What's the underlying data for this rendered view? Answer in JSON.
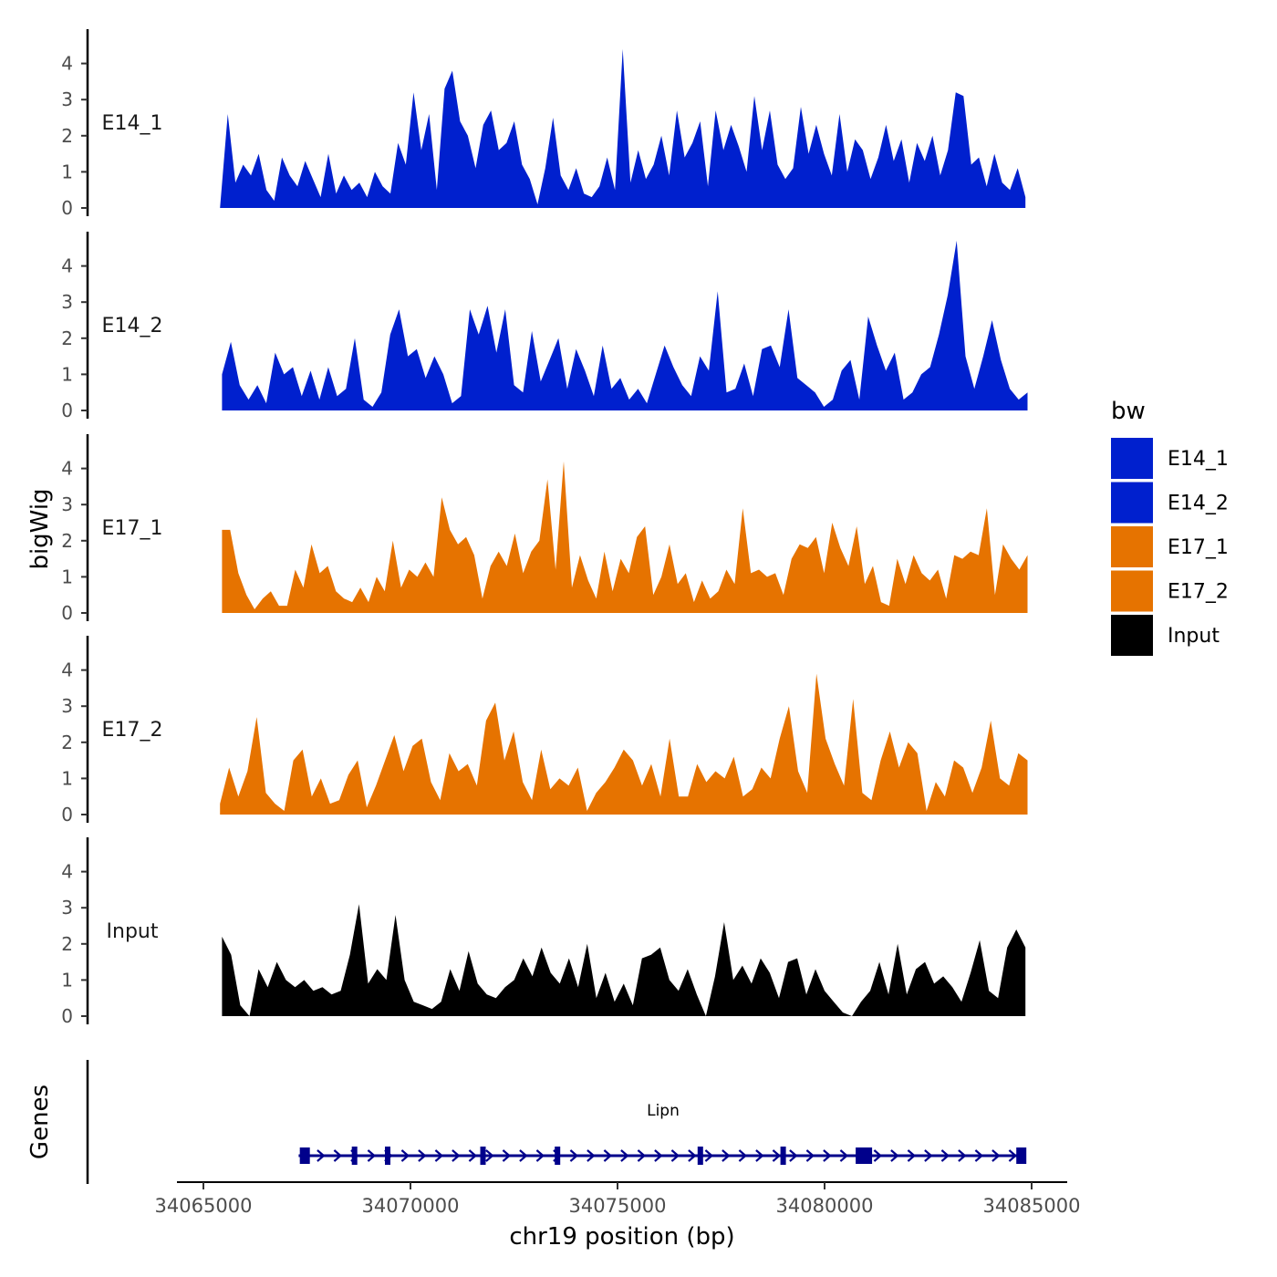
{
  "chart_data": {
    "type": "area",
    "ylabel": "bigWig",
    "xlabel": "chr19 position (bp)",
    "genes_label": "Genes",
    "gene_name": "Lipn",
    "legend_title": "bw",
    "legend_position": "right",
    "ylim": [
      0,
      5
    ],
    "yticks": [
      "0",
      "1",
      "2",
      "3",
      "4"
    ],
    "xlim": [
      34064500,
      34086000
    ],
    "xticks": [
      34065000,
      34070000,
      34075000,
      34080000,
      34085000
    ],
    "xtick_labels": [
      "34065000",
      "34070000",
      "34075000",
      "34080000",
      "34085000"
    ],
    "colors": {
      "E14_1": "#0020CE",
      "E14_2": "#0020CE",
      "E17_1": "#E67300",
      "E17_2": "#E67300",
      "Input": "#000000",
      "gene": "#00008B"
    },
    "legend": [
      {
        "label": "E14_1",
        "color": "#0020CE"
      },
      {
        "label": "E14_2",
        "color": "#0020CE"
      },
      {
        "label": "E17_1",
        "color": "#E67300"
      },
      {
        "label": "E17_2",
        "color": "#E67300"
      },
      {
        "label": "Input",
        "color": "#000000"
      }
    ],
    "tracks": [
      {
        "name": "E14_1",
        "x_start": 34065400,
        "x_end": 34084850,
        "values": [
          0,
          2.6,
          0.7,
          1.2,
          0.9,
          1.5,
          0.5,
          0.2,
          1.4,
          0.9,
          0.6,
          1.3,
          0.8,
          0.3,
          1.5,
          0.4,
          0.9,
          0.5,
          0.7,
          0.3,
          1.0,
          0.6,
          0.4,
          1.8,
          1.2,
          3.2,
          1.6,
          2.6,
          0.5,
          3.3,
          3.8,
          2.4,
          2.0,
          1.1,
          2.3,
          2.7,
          1.6,
          1.8,
          2.4,
          1.2,
          0.8,
          0.1,
          1.1,
          2.5,
          0.9,
          0.5,
          1.1,
          0.4,
          0.3,
          0.6,
          1.4,
          0.5,
          4.4,
          0.7,
          1.6,
          0.8,
          1.2,
          2.0,
          0.9,
          2.7,
          1.4,
          1.8,
          2.4,
          0.6,
          2.7,
          1.6,
          2.3,
          1.7,
          1.0,
          3.1,
          1.6,
          2.7,
          1.2,
          0.8,
          1.1,
          2.8,
          1.5,
          2.3,
          1.5,
          0.9,
          2.6,
          1.0,
          1.9,
          1.6,
          0.8,
          1.4,
          2.3,
          1.3,
          1.9,
          0.7,
          1.8,
          1.3,
          2.0,
          0.9,
          1.6,
          3.2,
          3.1,
          1.2,
          1.4,
          0.6,
          1.5,
          0.7,
          0.5,
          1.1,
          0.3
        ]
      },
      {
        "name": "E14_2",
        "x_start": 34065450,
        "x_end": 34084900,
        "values": [
          1.0,
          1.9,
          0.7,
          0.3,
          0.7,
          0.2,
          1.6,
          1.0,
          1.2,
          0.4,
          1.1,
          0.3,
          1.2,
          0.4,
          0.6,
          2.0,
          0.3,
          0.1,
          0.5,
          2.1,
          2.8,
          1.5,
          1.7,
          0.9,
          1.5,
          1.0,
          0.2,
          0.4,
          2.8,
          2.1,
          2.9,
          1.6,
          2.8,
          0.7,
          0.5,
          2.2,
          0.8,
          1.4,
          2.0,
          0.6,
          1.7,
          1.1,
          0.4,
          1.8,
          0.6,
          0.9,
          0.3,
          0.6,
          0.2,
          1.0,
          1.8,
          1.2,
          0.7,
          0.4,
          1.5,
          1.1,
          3.3,
          0.5,
          0.6,
          1.3,
          0.4,
          1.7,
          1.8,
          1.2,
          2.8,
          0.9,
          0.7,
          0.5,
          0.1,
          0.3,
          1.1,
          1.4,
          0.3,
          2.6,
          1.8,
          1.1,
          1.6,
          0.3,
          0.5,
          1.0,
          1.2,
          2.1,
          3.2,
          4.7,
          1.5,
          0.6,
          1.5,
          2.5,
          1.4,
          0.6,
          0.3,
          0.5
        ]
      },
      {
        "name": "E17_1",
        "x_start": 34065450,
        "x_end": 34084900,
        "values": [
          2.3,
          2.3,
          1.1,
          0.5,
          0.1,
          0.4,
          0.6,
          0.2,
          0.2,
          1.2,
          0.7,
          1.9,
          1.1,
          1.3,
          0.6,
          0.4,
          0.3,
          0.7,
          0.3,
          1.0,
          0.6,
          2.0,
          0.7,
          1.2,
          1.0,
          1.4,
          1.0,
          3.2,
          2.3,
          1.9,
          2.1,
          1.6,
          0.4,
          1.3,
          1.7,
          1.3,
          2.2,
          1.1,
          1.7,
          2.0,
          3.7,
          1.2,
          4.2,
          0.7,
          1.6,
          0.9,
          0.4,
          1.7,
          0.6,
          1.5,
          1.1,
          2.1,
          2.4,
          0.5,
          1.0,
          1.9,
          0.8,
          1.1,
          0.3,
          0.9,
          0.4,
          0.6,
          1.2,
          0.8,
          2.9,
          1.1,
          1.2,
          1.0,
          1.1,
          0.5,
          1.5,
          1.9,
          1.8,
          2.1,
          1.1,
          2.5,
          1.8,
          1.3,
          2.4,
          0.8,
          1.3,
          0.3,
          0.2,
          1.5,
          0.8,
          1.6,
          1.1,
          0.9,
          1.2,
          0.4,
          1.6,
          1.5,
          1.7,
          1.6,
          2.9,
          0.5,
          1.9,
          1.5,
          1.2,
          1.6
        ]
      },
      {
        "name": "E17_2",
        "x_start": 34065400,
        "x_end": 34084900,
        "values": [
          0.3,
          1.3,
          0.5,
          1.2,
          2.7,
          0.6,
          0.3,
          0.1,
          1.5,
          1.8,
          0.5,
          1.0,
          0.3,
          0.4,
          1.1,
          1.5,
          0.2,
          0.8,
          1.5,
          2.2,
          1.2,
          1.9,
          2.1,
          0.9,
          0.4,
          1.7,
          1.2,
          1.4,
          0.8,
          2.6,
          3.1,
          1.5,
          2.3,
          0.9,
          0.4,
          1.8,
          0.7,
          1.0,
          0.8,
          1.3,
          0.1,
          0.6,
          0.9,
          1.3,
          1.8,
          1.5,
          0.8,
          1.4,
          0.5,
          2.1,
          0.5,
          0.5,
          1.4,
          0.9,
          1.2,
          1.0,
          1.6,
          0.5,
          0.7,
          1.3,
          1.0,
          2.1,
          3.0,
          1.2,
          0.6,
          3.9,
          2.1,
          1.4,
          0.8,
          3.2,
          0.6,
          0.4,
          1.5,
          2.3,
          1.3,
          2.0,
          1.7,
          0.1,
          0.9,
          0.5,
          1.5,
          1.3,
          0.6,
          1.3,
          2.6,
          1.0,
          0.8,
          1.7,
          1.5
        ]
      },
      {
        "name": "Input",
        "x_start": 34065450,
        "x_end": 34084850,
        "values": [
          2.2,
          1.7,
          0.3,
          0.0,
          1.3,
          0.8,
          1.5,
          1.0,
          0.8,
          1.0,
          0.7,
          0.8,
          0.6,
          0.7,
          1.7,
          3.1,
          0.9,
          1.3,
          1.0,
          2.8,
          1.0,
          0.4,
          0.3,
          0.2,
          0.4,
          1.3,
          0.7,
          1.8,
          0.9,
          0.6,
          0.5,
          0.8,
          1.0,
          1.6,
          1.1,
          1.9,
          1.2,
          0.9,
          1.6,
          0.8,
          2.0,
          0.5,
          1.2,
          0.4,
          0.9,
          0.3,
          1.6,
          1.7,
          1.9,
          1.0,
          0.7,
          1.3,
          0.6,
          0.0,
          1.1,
          2.6,
          1.0,
          1.4,
          0.9,
          1.6,
          1.2,
          0.5,
          1.5,
          1.6,
          0.6,
          1.3,
          0.7,
          0.4,
          0.1,
          0.0,
          0.4,
          0.7,
          1.5,
          0.6,
          2.0,
          0.6,
          1.3,
          1.5,
          0.9,
          1.1,
          0.8,
          0.4,
          1.2,
          2.1,
          0.7,
          0.5,
          1.9,
          2.4,
          1.9
        ]
      }
    ],
    "gene": {
      "name": "Lipn",
      "start": 34067300,
      "end": 34084800,
      "strand": "+",
      "exons": [
        34067450,
        34068650,
        34069450,
        34071750,
        34073550,
        34077000,
        34079000,
        34080950,
        34084750
      ]
    }
  }
}
